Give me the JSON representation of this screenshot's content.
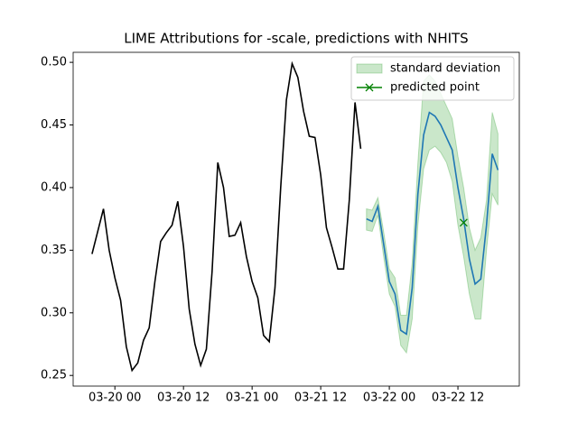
{
  "chart_data": {
    "type": "line",
    "title": "LIME Attributions for -scale, predictions with NHITS",
    "series": [
      {
        "color": "#000000",
        "x": [
          "03-19 20",
          "03-19 21",
          "03-19 22",
          "03-19 23",
          "03-20 00",
          "03-20 01",
          "03-20 02",
          "03-20 03",
          "03-20 04",
          "03-20 05",
          "03-20 06",
          "03-20 07",
          "03-20 08",
          "03-20 09",
          "03-20 10",
          "03-20 11",
          "03-20 12",
          "03-20 13",
          "03-20 14",
          "03-20 15",
          "03-20 16",
          "03-20 17",
          "03-20 18",
          "03-20 19",
          "03-20 20",
          "03-20 21",
          "03-20 22",
          "03-20 23",
          "03-21 00",
          "03-21 01",
          "03-21 02",
          "03-21 03",
          "03-21 04",
          "03-21 05",
          "03-21 06",
          "03-21 07",
          "03-21 08",
          "03-21 09",
          "03-21 10",
          "03-21 11",
          "03-21 12",
          "03-21 13",
          "03-21 14",
          "03-21 15",
          "03-21 16",
          "03-21 17",
          "03-21 18",
          "03-21 19"
        ],
        "values": [
          0.347,
          0.365,
          0.383,
          0.35,
          0.328,
          0.31,
          0.273,
          0.254,
          0.26,
          0.278,
          0.288,
          0.325,
          0.357,
          0.364,
          0.37,
          0.389,
          0.353,
          0.303,
          0.275,
          0.258,
          0.271,
          0.333,
          0.42,
          0.4,
          0.361,
          0.362,
          0.372,
          0.345,
          0.325,
          0.312,
          0.282,
          0.277,
          0.32,
          0.4,
          0.47,
          0.499,
          0.488,
          0.461,
          0.441,
          0.44,
          0.41,
          0.368,
          0.352,
          0.335,
          0.335,
          0.39,
          0.468,
          0.431
        ]
      },
      {
        "color": "#1f77b4",
        "x": [
          "03-21 20",
          "03-21 21",
          "03-21 22",
          "03-21 23",
          "03-22 00",
          "03-22 01",
          "03-22 02",
          "03-22 03",
          "03-22 04",
          "03-22 05",
          "03-22 06",
          "03-22 07",
          "03-22 08",
          "03-22 09",
          "03-22 10",
          "03-22 11",
          "03-22 12",
          "03-22 13",
          "03-22 14",
          "03-22 15",
          "03-22 16",
          "03-22 17",
          "03-22 18",
          "03-22 19"
        ],
        "values": [
          0.375,
          0.373,
          0.385,
          0.355,
          0.325,
          0.315,
          0.286,
          0.283,
          0.32,
          0.395,
          0.442,
          0.46,
          0.457,
          0.45,
          0.44,
          0.43,
          0.4,
          0.375,
          0.343,
          0.323,
          0.327,
          0.37,
          0.427,
          0.414
        ]
      }
    ],
    "band": {
      "name": "standard deviation",
      "color": "#2ca02c",
      "x": [
        "03-21 20",
        "03-21 21",
        "03-21 22",
        "03-21 23",
        "03-22 00",
        "03-22 01",
        "03-22 02",
        "03-22 03",
        "03-22 04",
        "03-22 05",
        "03-22 06",
        "03-22 07",
        "03-22 08",
        "03-22 09",
        "03-22 10",
        "03-22 11",
        "03-22 12",
        "03-22 13",
        "03-22 14",
        "03-22 15",
        "03-22 16",
        "03-22 17",
        "03-22 18",
        "03-22 19"
      ],
      "lower": [
        0.366,
        0.365,
        0.378,
        0.345,
        0.315,
        0.305,
        0.274,
        0.268,
        0.295,
        0.37,
        0.415,
        0.43,
        0.433,
        0.428,
        0.42,
        0.405,
        0.37,
        0.345,
        0.315,
        0.295,
        0.295,
        0.35,
        0.395,
        0.386
      ],
      "upper": [
        0.383,
        0.382,
        0.392,
        0.365,
        0.335,
        0.328,
        0.298,
        0.298,
        0.34,
        0.42,
        0.485,
        0.49,
        0.485,
        0.475,
        0.465,
        0.455,
        0.425,
        0.4,
        0.368,
        0.35,
        0.36,
        0.39,
        0.46,
        0.443
      ]
    },
    "point": {
      "name": "predicted point",
      "color": "#008000",
      "x": "03-22 13",
      "value": 0.372
    },
    "xlim": [
      "03-19 16:42",
      "03-22 22:44"
    ],
    "xticks": [
      "03-20 00",
      "03-20 12",
      "03-21 00",
      "03-21 12",
      "03-22 00",
      "03-22 12"
    ],
    "ylim": [
      0.2415,
      0.508
    ],
    "yticks": [
      {
        "value": 0.25,
        "label": "0.25"
      },
      {
        "value": 0.3,
        "label": "0.30"
      },
      {
        "value": 0.35,
        "label": "0.35"
      },
      {
        "value": 0.4,
        "label": "0.40"
      },
      {
        "value": 0.45,
        "label": "0.45"
      },
      {
        "value": 0.5,
        "label": "0.50"
      }
    ],
    "legend": "upper right"
  }
}
